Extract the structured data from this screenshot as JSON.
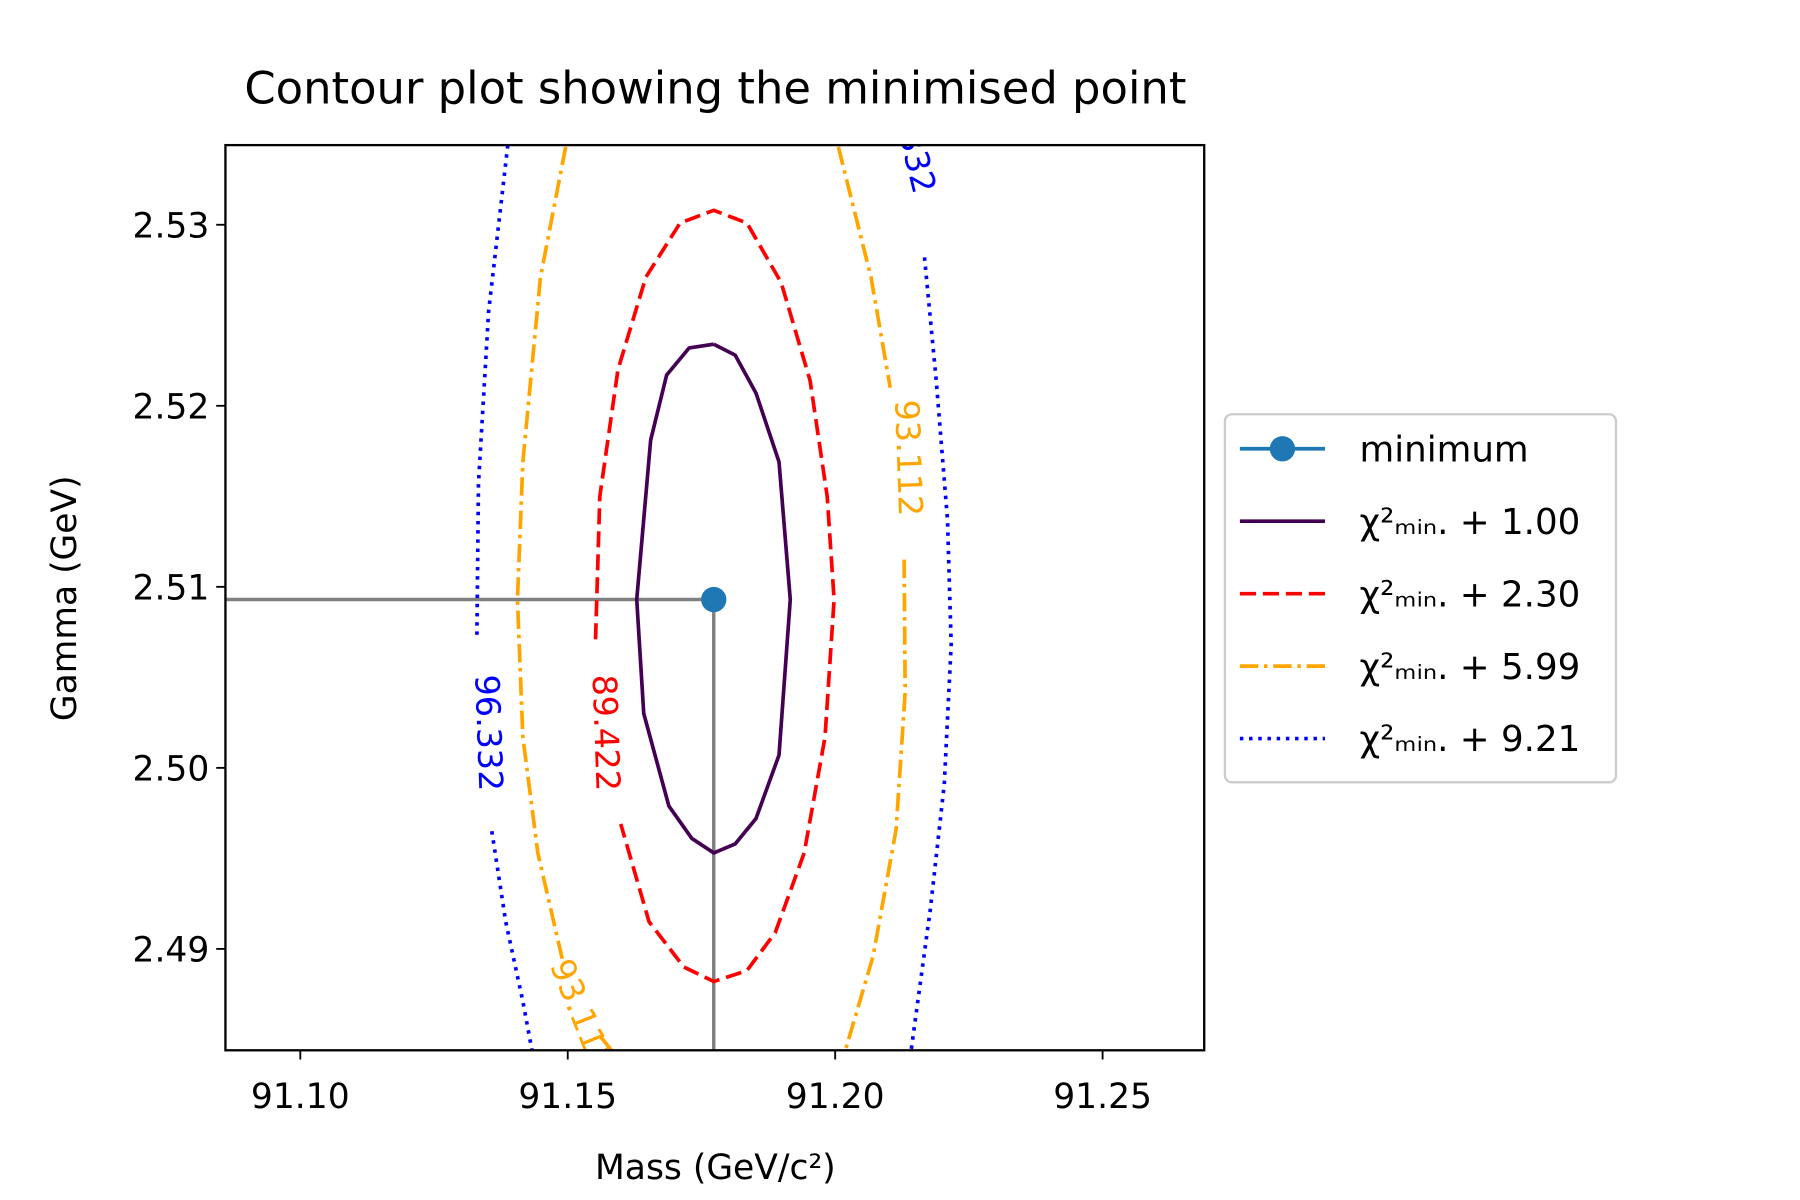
{
  "chart_data": {
    "type": "contour",
    "title": "Contour plot showing the minimised point",
    "xlabel": "Mass (GeV/c²)",
    "ylabel": "Gamma (GeV)",
    "xlim": [
      91.086,
      91.269
    ],
    "ylim": [
      2.4844,
      2.5344
    ],
    "xticks": [
      {
        "value": 91.1,
        "label": "91.10"
      },
      91.15,
      {
        "value": 91.2,
        "label": "91.20"
      },
      91.25
    ],
    "yticks": [
      2.49,
      {
        "value": 2.5,
        "label": "2.50"
      },
      2.51,
      2.52,
      2.53
    ],
    "grid": false,
    "legend": "outside right",
    "series": [
      {
        "name": "minimum",
        "color": "#1f77b4",
        "linestyle": "marker",
        "x": [
          91.1773
        ],
        "values": [
          2.5093
        ]
      },
      {
        "name": "χ²ₘᵢₙ. + 1.00",
        "color": "#440154",
        "linestyle": "solid",
        "x": [
          91.1773,
          91.1813,
          91.1852,
          91.1895,
          91.1916,
          91.1895,
          91.1852,
          91.1813,
          91.1773,
          91.1732,
          91.1689,
          91.1642,
          91.1629,
          91.1655,
          91.1685,
          91.1727,
          91.1773
        ],
        "values": [
          2.5234,
          2.5228,
          2.5207,
          2.5169,
          2.5093,
          2.5007,
          2.4972,
          2.4958,
          2.4953,
          2.4961,
          2.4979,
          2.503,
          2.5093,
          2.5181,
          2.5217,
          2.5232,
          2.5234
        ]
      },
      {
        "name": "χ²ₘᵢₙ. + 2.30",
        "color": "red",
        "linestyle": "dashed",
        "label": "89.422",
        "x": [
          91.1552,
          91.156,
          91.1594,
          91.1646,
          91.171,
          91.1773,
          91.1835,
          91.1899,
          91.1953,
          91.1985,
          91.1998,
          91.1981,
          91.1942,
          91.1888,
          91.1835,
          91.1773,
          91.1717,
          91.1652,
          91.1599
        ],
        "values": [
          2.5071,
          2.515,
          2.522,
          2.5271,
          2.5301,
          2.5308,
          2.5301,
          2.5268,
          2.5214,
          2.515,
          2.5093,
          2.5017,
          2.4953,
          2.4909,
          2.4888,
          2.4882,
          2.489,
          2.4915,
          2.4969
        ]
      },
      {
        "name": "χ²ₘᵢₙ. + 5.99",
        "color": "orange",
        "linestyle": "dashdot",
        "label": "93.112",
        "x": [
          91.1496,
          91.1449,
          91.1416,
          91.1406,
          91.1416,
          91.1444,
          91.1491,
          null,
          91.156,
          91.1582,
          null,
          91.2006,
          91.2067,
          91.2103,
          null,
          91.2129,
          91.2131,
          91.2114,
          91.2071,
          91.2019
        ],
        "values": [
          2.5343,
          2.5271,
          2.5169,
          2.5093,
          2.5017,
          2.4953,
          2.4893,
          null,
          2.4852,
          2.4844,
          null,
          2.5343,
          2.5271,
          2.521,
          null,
          2.5115,
          2.5042,
          2.4966,
          2.4896,
          2.4844
        ]
      },
      {
        "name": "χ²ₘᵢₙ. + 9.21",
        "color": "blue",
        "linestyle": "dotted",
        "label": "96.332",
        "x": [
          91.1388,
          91.1352,
          91.1333,
          91.133,
          null,
          91.1358,
          91.1384,
          91.1416,
          91.1433,
          null,
          91.2167,
          91.2189,
          91.221,
          91.2217,
          91.2204,
          91.2178,
          91.2142
        ],
        "values": [
          2.5344,
          2.5252,
          2.5157,
          2.5071,
          null,
          2.4965,
          2.4915,
          2.4871,
          2.4844,
          null,
          2.5282,
          2.5214,
          2.5137,
          2.5068,
          2.4991,
          2.4922,
          2.4844
        ]
      }
    ]
  }
}
